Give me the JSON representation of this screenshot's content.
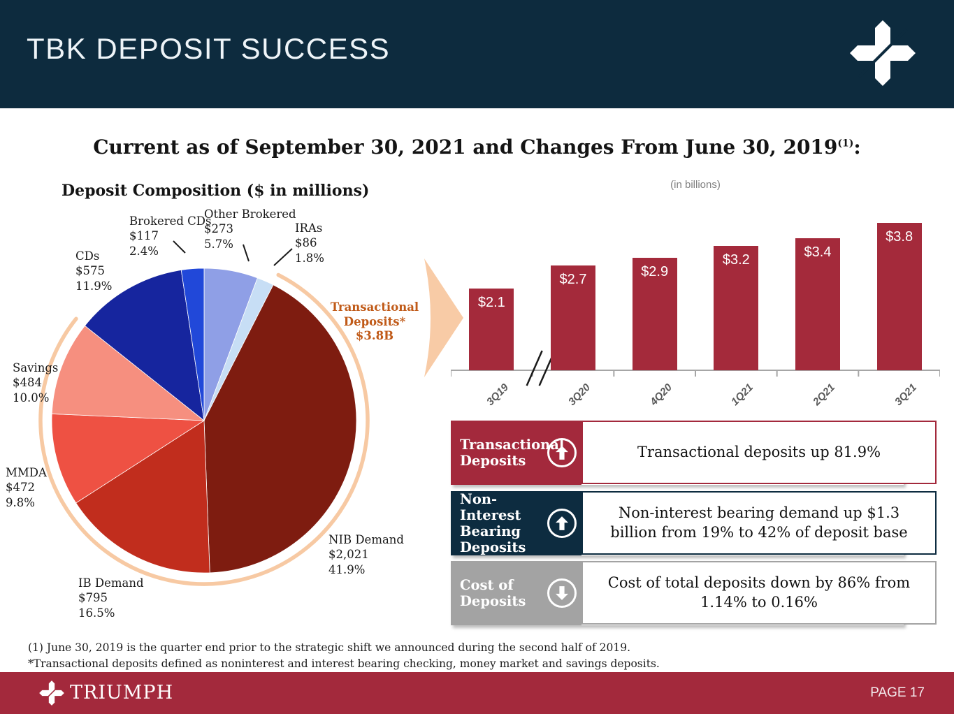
{
  "header": {
    "title": "TBK DEPOSIT SUCCESS"
  },
  "main_title": {
    "text": "Current as of September 30, 2021 and Changes From June 30, 2019",
    "superscript": "(1)",
    "suffix": ":"
  },
  "colors": {
    "navy": "#0d2b3e",
    "crimson": "#a3293c",
    "gray": "#a3a3a3",
    "peach": "#f8cba6",
    "annotation_orange": "#c05a18"
  },
  "chart_data": [
    {
      "type": "pie",
      "title": "Deposit Composition ($ in millions)",
      "slices": [
        {
          "label": "Other Brokered",
          "value_text": "$273",
          "pct": 5.7,
          "pct_text": "5.7%",
          "color": "#8f9fe6"
        },
        {
          "label": "IRAs",
          "value_text": "$86",
          "pct": 1.8,
          "pct_text": "1.8%",
          "color": "#c7def5"
        },
        {
          "label": "NIB Demand",
          "value_text": "$2,021",
          "pct": 41.9,
          "pct_text": "41.9%",
          "color": "#7e1c10"
        },
        {
          "label": "IB Demand",
          "value_text": "$795",
          "pct": 16.5,
          "pct_text": "16.5%",
          "color": "#c12d1d"
        },
        {
          "label": "MMDA",
          "value_text": "$472",
          "pct": 9.8,
          "pct_text": "9.8%",
          "color": "#ee5143"
        },
        {
          "label": "Savings",
          "value_text": "$484",
          "pct": 10.0,
          "pct_text": "10.0%",
          "color": "#f68f7f"
        },
        {
          "label": "CDs",
          "value_text": "$575",
          "pct": 11.9,
          "pct_text": "11.9%",
          "color": "#16259e"
        },
        {
          "label": "Brokered CDs",
          "value_text": "$117",
          "pct": 2.4,
          "pct_text": "2.4%",
          "color": "#2148d9"
        }
      ],
      "annotation": {
        "lines": [
          "Transactional",
          "Deposits*",
          "$3.8B"
        ],
        "color": "#c05a18",
        "arc_color": "#f7c9a3",
        "arc_start_pct": 7.5,
        "arc_end_pct": 85.7
      },
      "legend": "none"
    },
    {
      "type": "bar",
      "subtitle": "(in billions)",
      "categories": [
        "3Q19",
        "3Q20",
        "4Q20",
        "1Q21",
        "2Q21",
        "3Q21"
      ],
      "values": [
        2.1,
        2.7,
        2.9,
        3.2,
        3.4,
        3.8
      ],
      "value_labels": [
        "$2.1",
        "$2.7",
        "$2.9",
        "$3.2",
        "$3.4",
        "$3.8"
      ],
      "bar_color": "#a42a3b",
      "baseline_value": 0,
      "y_axis_visible": false,
      "grid": "off",
      "axis_break_after_first": true,
      "category_label_rotation_deg": 45
    }
  ],
  "callouts": {
    "rows": [
      {
        "title": "Transactional Deposits",
        "direction": "up",
        "panel_color": "#a3293c",
        "text": "Transactional deposits up 81.9%"
      },
      {
        "title": "Non-Interest Bearing Deposits",
        "direction": "up",
        "panel_color": "#0d2c40",
        "text": "Non-interest bearing demand up $1.3 billion from 19% to 42% of deposit base"
      },
      {
        "title": "Cost of Deposits",
        "direction": "down",
        "panel_color": "#a3a3a3",
        "text": "Cost of total deposits down by 86% from 1.14% to 0.16%"
      }
    ]
  },
  "footnotes": [
    "(1) June 30, 2019 is the quarter end prior to the strategic shift we announced during the second half of 2019.",
    "*Transactional deposits defined as noninterest and interest bearing checking, money market  and savings deposits."
  ],
  "footer": {
    "brand": "TRIUMPH",
    "page_label": "PAGE 17"
  }
}
